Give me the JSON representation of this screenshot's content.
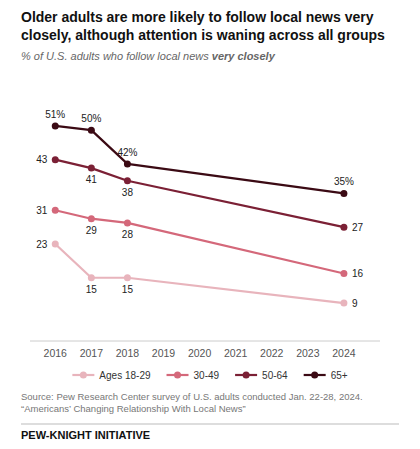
{
  "chart_data": {
    "type": "line",
    "title": "Older adults are more likely to follow local news very closely, although attention is waning across all groups",
    "subtitle": [
      "% of U.S. adults who follow local news ",
      "very closely"
    ],
    "x": [
      2016,
      2017,
      2018,
      2024
    ],
    "xlim": [
      2015.3,
      2025.0
    ],
    "xticks": [
      2016,
      2017,
      2018,
      2019,
      2020,
      2021,
      2022,
      2023,
      2024
    ],
    "ylim": [
      0,
      60
    ],
    "tick_labels": "x",
    "grid": false,
    "legend": "bottom",
    "data_labels": true,
    "marker": "circle",
    "series": [
      {
        "name": "Ages 18-29",
        "color": "#e8b4bc",
        "values": [
          23,
          15,
          15,
          9
        ]
      },
      {
        "name": "30-49",
        "color": "#d4687a",
        "values": [
          31,
          29,
          28,
          16
        ]
      },
      {
        "name": "50-64",
        "color": "#7b2035",
        "values": [
          43,
          41,
          38,
          27
        ]
      },
      {
        "name": "65+",
        "color": "#3b0a14",
        "values": [
          51,
          50,
          42,
          35
        ],
        "value_labels": [
          "51%",
          "50%",
          "42%",
          "35%"
        ]
      }
    ],
    "source": [
      "Source: Pew Research Center survey of U.S. adults conducted Jan. 22-28, 2024.",
      "“Americans’ Changing Relationship With Local News”"
    ],
    "annotations": [
      "PEW-KNIGHT INITIATIVE"
    ]
  }
}
